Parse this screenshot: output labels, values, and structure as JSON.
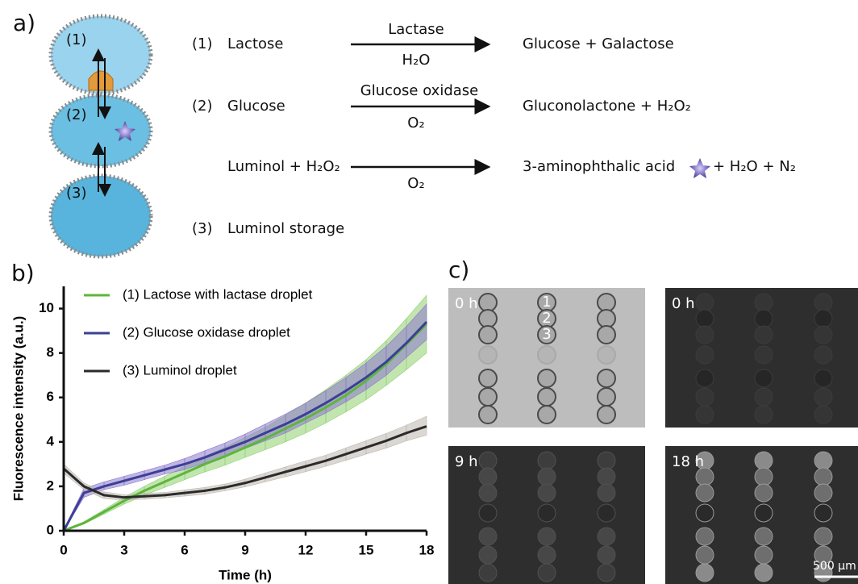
{
  "panel_a": {
    "label": "a)",
    "droplet_labels": [
      "(1)",
      "(2)",
      "(3)"
    ],
    "reactions": [
      {
        "number": "(1)",
        "reactant": "Lactose",
        "above": "Lactase",
        "below": "H₂O",
        "product": "Glucose + Galactose"
      },
      {
        "number": "(2)",
        "reactant": "Glucose",
        "above": "Glucose oxidase",
        "below": "O₂",
        "product": "Gluconolactone + H₂O₂"
      },
      {
        "reactant": "Luminol + H₂O₂",
        "below": "O₂",
        "product": "3-aminophthalic acid",
        "product_rest": "+  H₂O + N₂"
      },
      {
        "number": "(3)",
        "reactant": "Luminol storage"
      }
    ]
  },
  "panel_c": {
    "label": "c)",
    "frames": [
      "0 h",
      "0 h",
      "9 h",
      "18 h"
    ],
    "numbers": [
      "1",
      "2",
      "3"
    ],
    "scale_bar": "500 µm"
  },
  "chart_data": {
    "type": "line",
    "panel_label": "b)",
    "x_label": "Time (h)",
    "y_label": "Fluorescence intensity (a.u.)",
    "x": [
      0,
      1,
      2,
      3,
      4,
      5,
      6,
      7,
      8,
      9,
      10,
      11,
      12,
      13,
      14,
      15,
      16,
      17,
      18
    ],
    "series": [
      {
        "name": "(1) Lactose with lactase droplet",
        "color": "#5db53c",
        "band_color": "#8fd070",
        "values": [
          0,
          0.35,
          0.85,
          1.35,
          1.8,
          2.2,
          2.6,
          3.0,
          3.35,
          3.75,
          4.15,
          4.6,
          5.05,
          5.55,
          6.1,
          6.75,
          7.5,
          8.4,
          9.3
        ],
        "band_lower": [
          0,
          0.3,
          0.75,
          1.2,
          1.6,
          1.95,
          2.3,
          2.65,
          2.95,
          3.3,
          3.65,
          4.0,
          4.4,
          4.85,
          5.35,
          5.9,
          6.55,
          7.25,
          8.0
        ],
        "band_upper": [
          0.05,
          0.4,
          0.95,
          1.5,
          2.0,
          2.45,
          2.9,
          3.35,
          3.75,
          4.2,
          4.65,
          5.2,
          5.75,
          6.35,
          7.0,
          7.7,
          8.55,
          9.55,
          10.6
        ]
      },
      {
        "name": "(2) Glucose oxidase droplet",
        "color": "#3c3f96",
        "band_color": "#8d78cc",
        "values": [
          0,
          1.7,
          2.0,
          2.25,
          2.5,
          2.75,
          3.0,
          3.3,
          3.65,
          4.0,
          4.4,
          4.8,
          5.25,
          5.75,
          6.3,
          6.9,
          7.6,
          8.45,
          9.4
        ],
        "band_lower": [
          0,
          1.5,
          1.85,
          2.05,
          2.3,
          2.55,
          2.75,
          3.05,
          3.35,
          3.7,
          4.05,
          4.4,
          4.85,
          5.3,
          5.8,
          6.35,
          7.0,
          7.8,
          8.6
        ],
        "band_upper": [
          0.05,
          1.9,
          2.2,
          2.45,
          2.7,
          2.95,
          3.25,
          3.6,
          3.95,
          4.35,
          4.8,
          5.25,
          5.75,
          6.3,
          6.9,
          7.55,
          8.3,
          9.2,
          10.2
        ]
      },
      {
        "name": "(3) Luminol droplet",
        "color": "#2b2b2b",
        "band_color": "#bdb7ae",
        "values": [
          2.8,
          2.0,
          1.6,
          1.5,
          1.55,
          1.6,
          1.7,
          1.8,
          1.95,
          2.15,
          2.4,
          2.65,
          2.9,
          3.15,
          3.45,
          3.75,
          4.05,
          4.4,
          4.7
        ],
        "band_lower": [
          2.6,
          1.85,
          1.45,
          1.38,
          1.42,
          1.48,
          1.56,
          1.65,
          1.8,
          1.98,
          2.2,
          2.43,
          2.66,
          2.9,
          3.17,
          3.45,
          3.72,
          4.05,
          4.3
        ],
        "band_upper": [
          3.0,
          2.15,
          1.75,
          1.62,
          1.68,
          1.72,
          1.84,
          1.95,
          2.1,
          2.32,
          2.6,
          2.87,
          3.14,
          3.4,
          3.73,
          4.05,
          4.38,
          4.75,
          5.15
        ]
      }
    ],
    "xlim": [
      0,
      18
    ],
    "xticks": [
      0,
      3,
      6,
      9,
      12,
      15,
      18
    ],
    "ylim": [
      0,
      11
    ],
    "yticks": [
      0,
      2,
      4,
      6,
      8,
      10
    ]
  }
}
